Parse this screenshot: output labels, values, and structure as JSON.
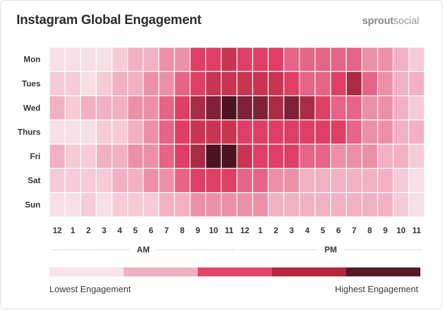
{
  "header": {
    "title": "Instagram Global Engagement",
    "brand_primary": "sprout",
    "brand_secondary": "social"
  },
  "chart_data": {
    "type": "heatmap",
    "title": "Instagram Global Engagement",
    "rows": [
      "Mon",
      "Tues",
      "Wed",
      "Thurs",
      "Fri",
      "Sat",
      "Sun"
    ],
    "columns": [
      "12",
      "1",
      "2",
      "3",
      "4",
      "5",
      "6",
      "7",
      "8",
      "9",
      "10",
      "11",
      "12",
      "1",
      "2",
      "3",
      "4",
      "5",
      "6",
      "7",
      "8",
      "9",
      "10",
      "11"
    ],
    "period_labels": [
      "AM",
      "PM"
    ],
    "value_range": [
      0,
      10
    ],
    "values": [
      [
        1,
        1,
        1,
        1,
        2,
        3,
        3,
        4,
        4,
        6,
        6,
        7,
        6,
        6,
        6,
        5,
        5,
        5,
        5,
        5,
        4,
        4,
        3,
        2
      ],
      [
        2,
        2,
        1,
        2,
        3,
        3,
        4,
        4,
        5,
        6,
        7,
        7,
        7,
        7,
        7,
        6,
        5,
        5,
        6,
        8,
        5,
        4,
        3,
        3
      ],
      [
        3,
        2,
        3,
        3,
        3,
        4,
        4,
        5,
        6,
        8,
        9,
        10,
        9,
        9,
        8,
        9,
        8,
        6,
        5,
        5,
        4,
        4,
        3,
        2
      ],
      [
        1,
        1,
        1,
        2,
        2,
        3,
        4,
        5,
        6,
        7,
        7,
        7,
        6,
        6,
        6,
        6,
        6,
        6,
        6,
        5,
        4,
        4,
        3,
        3
      ],
      [
        3,
        2,
        2,
        3,
        3,
        4,
        4,
        5,
        6,
        8,
        10,
        10,
        7,
        6,
        6,
        6,
        5,
        5,
        4,
        4,
        4,
        3,
        3,
        2
      ],
      [
        2,
        2,
        2,
        2,
        3,
        3,
        4,
        4,
        5,
        6,
        6,
        6,
        5,
        5,
        4,
        4,
        3,
        3,
        3,
        3,
        3,
        3,
        2,
        1
      ],
      [
        1,
        1,
        2,
        1,
        2,
        2,
        2,
        3,
        3,
        4,
        4,
        4,
        4,
        4,
        3,
        3,
        3,
        3,
        3,
        3,
        3,
        3,
        2,
        1
      ]
    ],
    "legend": {
      "low_label": "Lowest Engagement",
      "high_label": "Highest Engagement",
      "colors": [
        "#f8e4ea",
        "#f1b0c2",
        "#e3466a",
        "#b3283f",
        "#581826"
      ]
    },
    "color_scale": [
      "#f9eef1",
      "#f7dfe6",
      "#f5cbd7",
      "#f1b0c3",
      "#ec90a8",
      "#e66485",
      "#df3f64",
      "#c93452",
      "#a92c45",
      "#7e2137",
      "#4e1322"
    ]
  }
}
